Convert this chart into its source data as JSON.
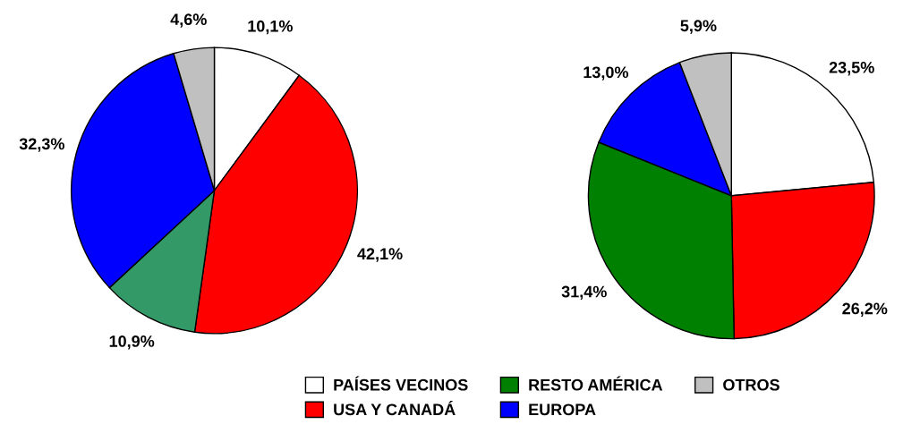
{
  "chart_data": [
    {
      "type": "pie",
      "categories": [
        null,
        null,
        null,
        null,
        null
      ],
      "values": [
        10.1,
        42.1,
        10.9,
        32.3,
        4.6
      ],
      "value_labels": [
        "10,1%",
        "42,1%",
        "10,9%",
        "32,3%",
        "4,6%"
      ],
      "colors": [
        "#ffffff",
        "#ff0000",
        "#339966",
        "#0000ff",
        "#c0c0c0"
      ]
    },
    {
      "type": "pie",
      "categories": [
        "PAÍSES VECINOS",
        "USA Y CANADÁ",
        "RESTO AMÉRICA",
        "EUROPA",
        "OTROS"
      ],
      "values": [
        23.5,
        26.2,
        31.4,
        13.0,
        5.9
      ],
      "value_labels": [
        "23,5%",
        "26,2%",
        "31,4%",
        "13,0%",
        "5,9%"
      ],
      "colors": [
        "#ffffff",
        "#ff0000",
        "#008000",
        "#0000ff",
        "#c0c0c0"
      ],
      "legend": "bottom"
    }
  ]
}
